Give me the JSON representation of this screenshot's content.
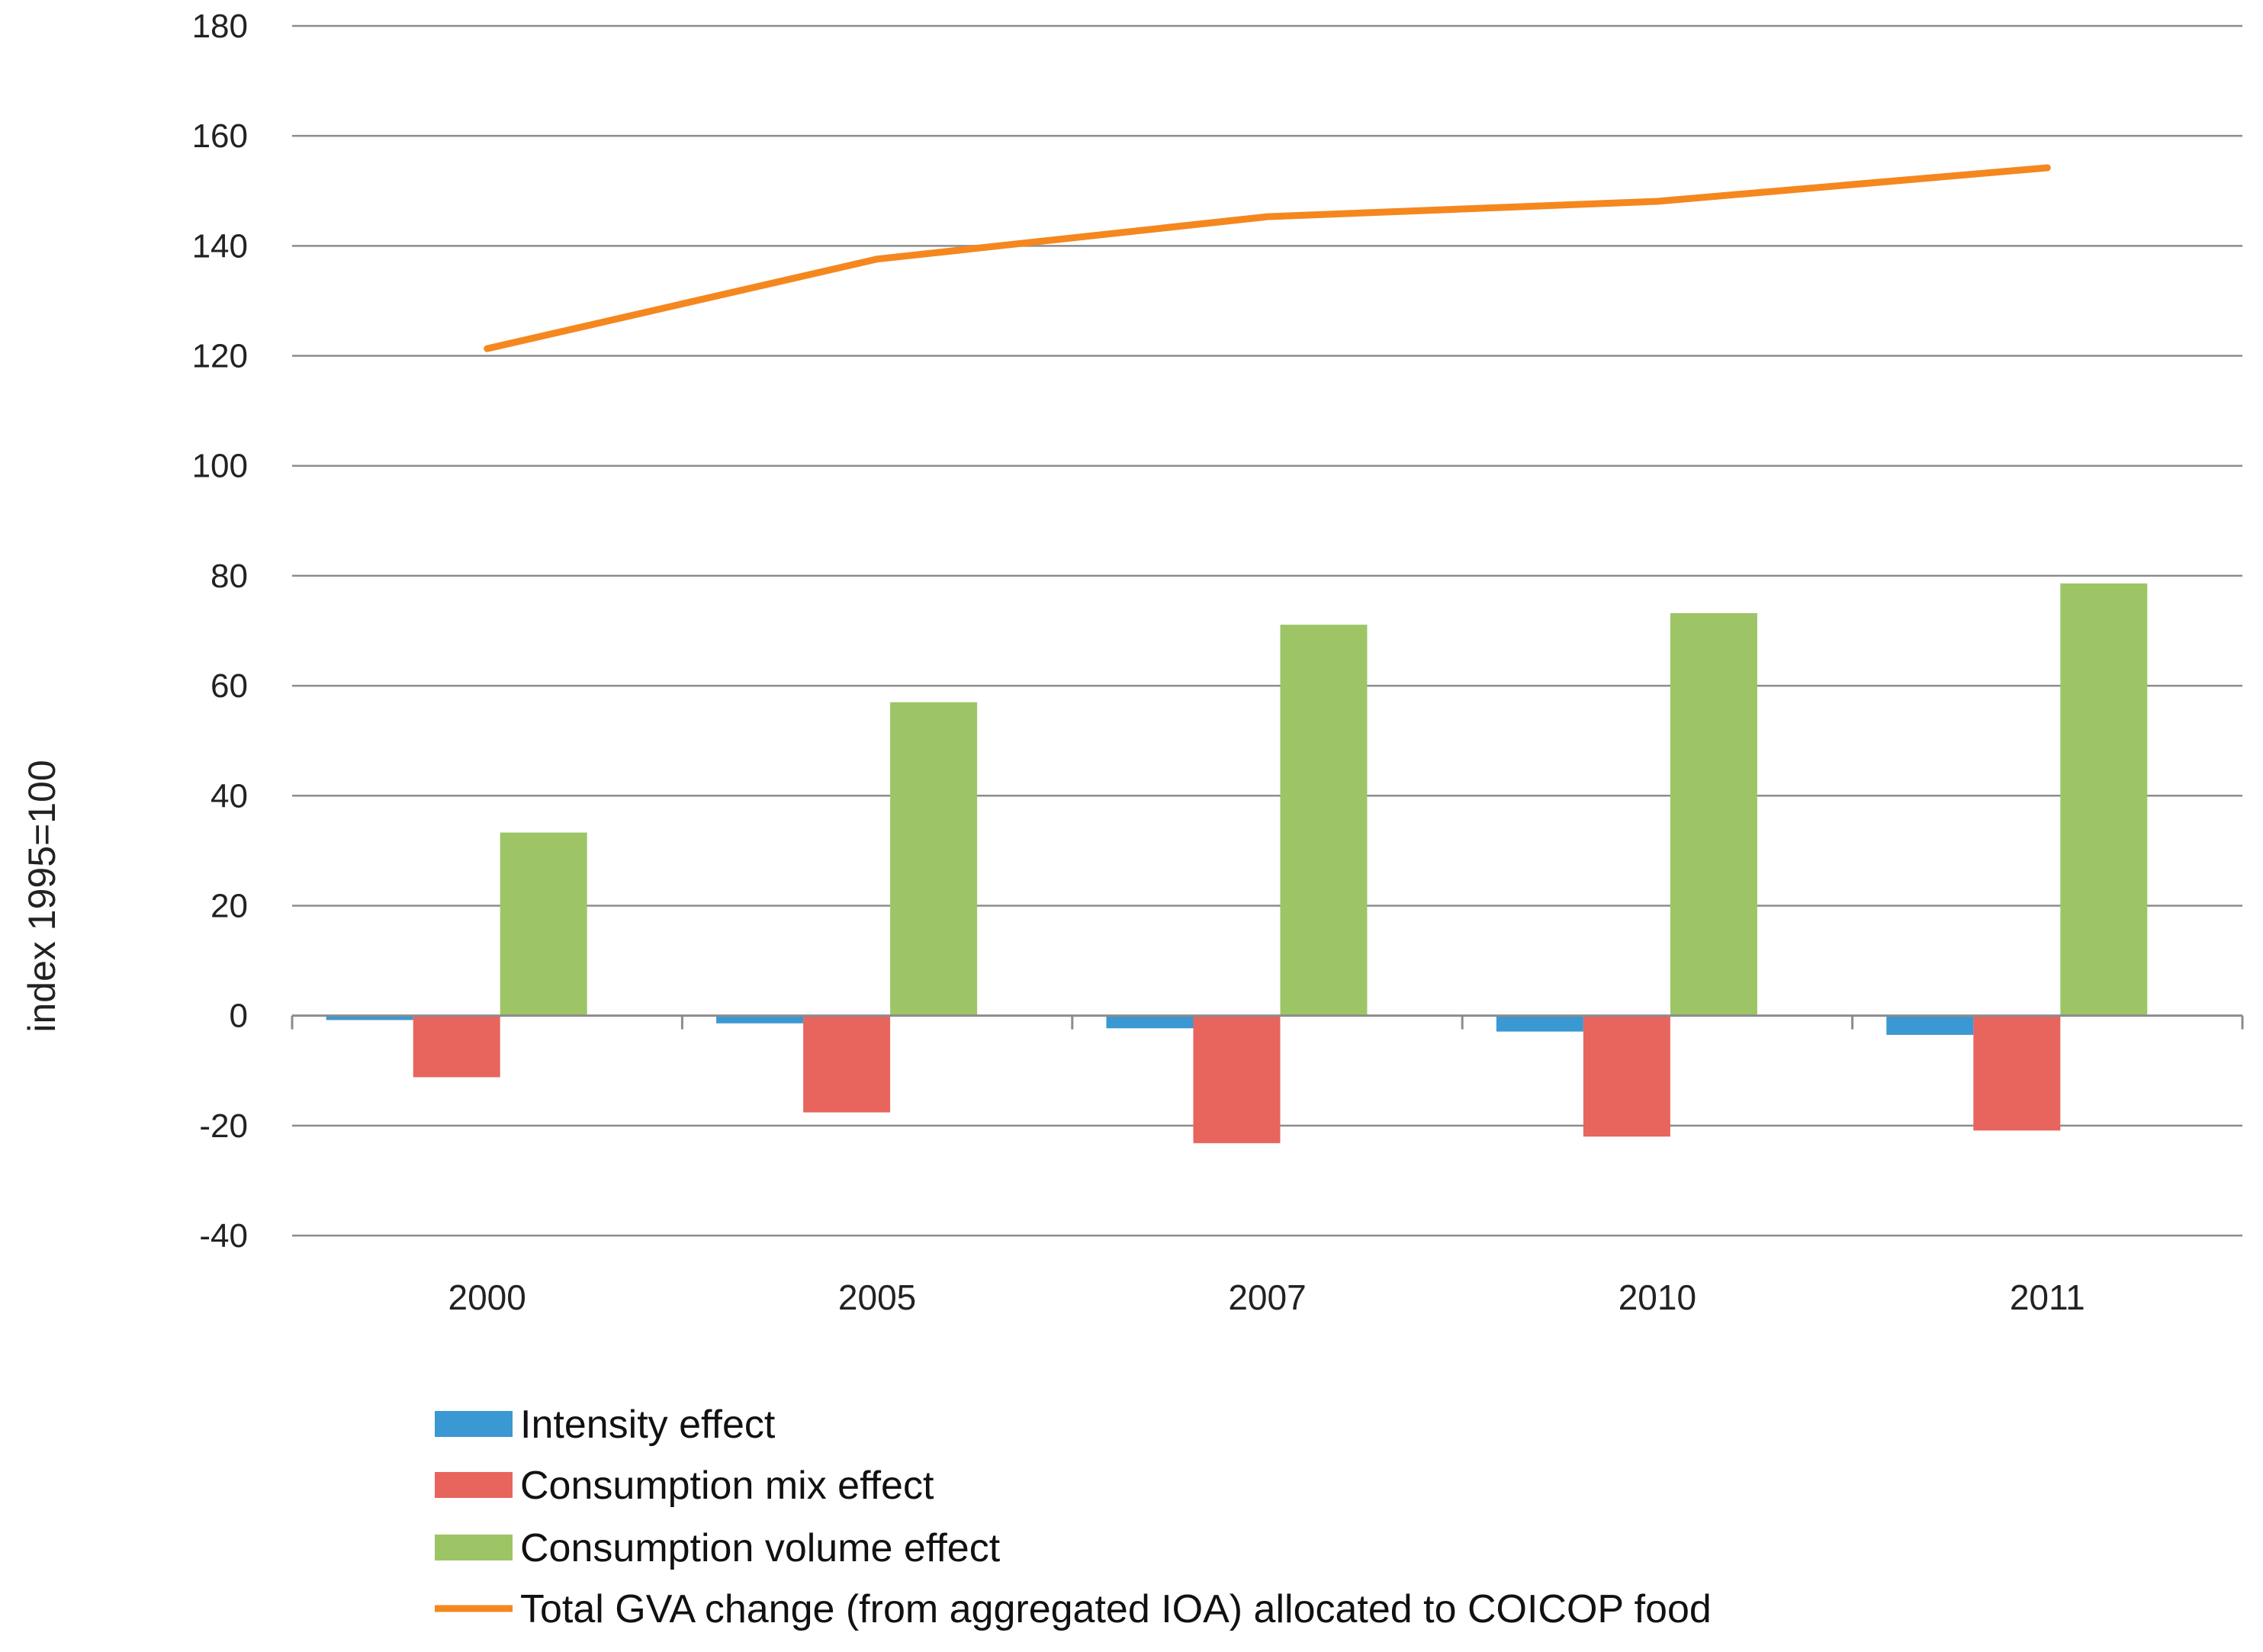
{
  "chart_data": {
    "type": "bar",
    "title": "",
    "xlabel": "",
    "ylabel": "index 1995=100",
    "ylim": [
      -40,
      180
    ],
    "yticks": [
      180,
      160,
      140,
      120,
      100,
      80,
      60,
      40,
      20,
      0,
      -20,
      -40
    ],
    "grid": true,
    "legend_position": "bottom",
    "categories": [
      "2000",
      "2005",
      "2007",
      "2010",
      "2011"
    ],
    "series": [
      {
        "name": "Intensity effect",
        "type": "bar",
        "color": "#3a98d2",
        "values": [
          -0.8,
          -1.4,
          -2.3,
          -2.9,
          -3.5
        ]
      },
      {
        "name": "Consumption mix effect",
        "type": "bar",
        "color": "#e8655e",
        "values": [
          -11.2,
          -17.6,
          -23.2,
          -22.0,
          -20.9
        ]
      },
      {
        "name": "Consumption volume effect",
        "type": "bar",
        "color": "#9dc566",
        "values": [
          33.3,
          57.0,
          71.1,
          73.2,
          78.6
        ]
      },
      {
        "name": "Total GVA change (from aggregated IOA) allocated to COICOP food",
        "type": "line",
        "color": "#f5871f",
        "values": [
          121.3,
          137.6,
          145.3,
          148.1,
          154.2
        ]
      }
    ]
  }
}
